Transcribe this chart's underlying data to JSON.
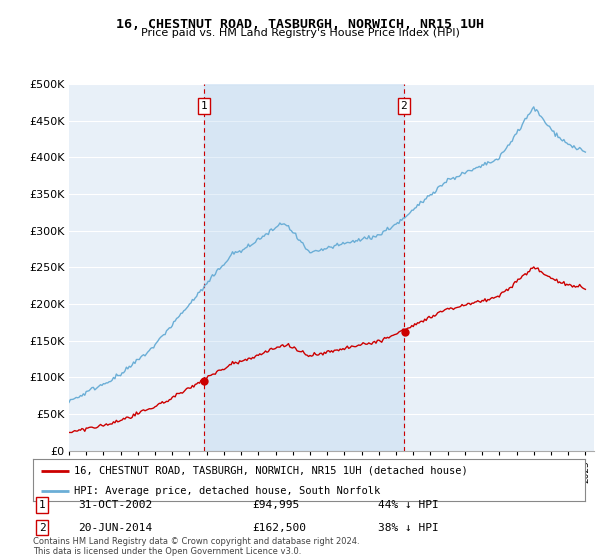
{
  "title1": "16, CHESTNUT ROAD, TASBURGH, NORWICH, NR15 1UH",
  "title2": "Price paid vs. HM Land Registry's House Price Index (HPI)",
  "ylim": [
    0,
    500000
  ],
  "yticks": [
    0,
    50000,
    100000,
    150000,
    200000,
    250000,
    300000,
    350000,
    400000,
    450000,
    500000
  ],
  "ytick_labels": [
    "£0",
    "£50K",
    "£100K",
    "£150K",
    "£200K",
    "£250K",
    "£300K",
    "£350K",
    "£400K",
    "£450K",
    "£500K"
  ],
  "hpi_color": "#6baed6",
  "price_color": "#cc0000",
  "vline_color": "#cc0000",
  "fill_color": "#ddeeff",
  "purchase1_year": 2002.83,
  "purchase1_price": 94995,
  "purchase1_label": "1",
  "purchase1_date": "31-OCT-2002",
  "purchase1_price_str": "£94,995",
  "purchase1_pct": "44% ↓ HPI",
  "purchase2_year": 2014.46,
  "purchase2_price": 162500,
  "purchase2_label": "2",
  "purchase2_date": "20-JUN-2014",
  "purchase2_price_str": "£162,500",
  "purchase2_pct": "38% ↓ HPI",
  "legend_line1": "16, CHESTNUT ROAD, TASBURGH, NORWICH, NR15 1UH (detached house)",
  "legend_line2": "HPI: Average price, detached house, South Norfolk",
  "footnote": "Contains HM Land Registry data © Crown copyright and database right 2024.\nThis data is licensed under the Open Government Licence v3.0.",
  "xmin": 1995,
  "xmax": 2025.5,
  "bg_color": "#e8f0f8"
}
